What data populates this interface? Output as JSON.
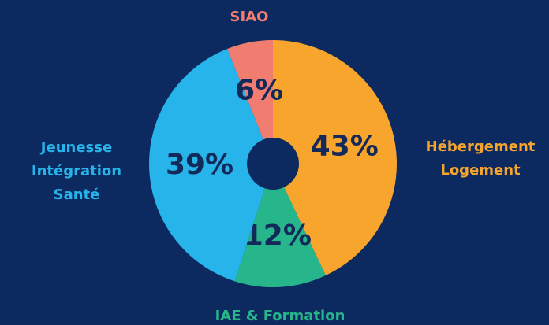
{
  "chart_data": {
    "type": "donut",
    "categories": [
      "Hébergement\nLogement",
      "IAE & Formation",
      "Jeunesse\nIntégration\nSanté",
      "SIAO"
    ],
    "values": [
      43,
      12,
      39,
      6
    ],
    "value_labels": [
      "43%",
      "12%",
      "39%",
      "6%"
    ],
    "colors": [
      "#f7a52c",
      "#27b58b",
      "#26b4ea",
      "#f17c70"
    ]
  }
}
